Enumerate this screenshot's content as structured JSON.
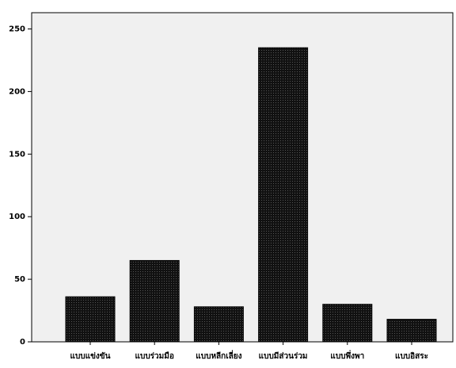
{
  "chart_data": {
    "type": "bar",
    "categories": [
      "แบบแข่งขัน",
      "แบบร่วมมือ",
      "แบบหลีกเลี่ยง",
      "แบบมีส่วนร่วม",
      "แบบพึ่งพา",
      "แบบอิสระ"
    ],
    "values": [
      36,
      65,
      28,
      235,
      30,
      18
    ],
    "color": "#1a1a1a",
    "ylim": [
      0,
      263
    ],
    "yticks": [
      0,
      50,
      100,
      150,
      200,
      250
    ],
    "grid": false
  }
}
